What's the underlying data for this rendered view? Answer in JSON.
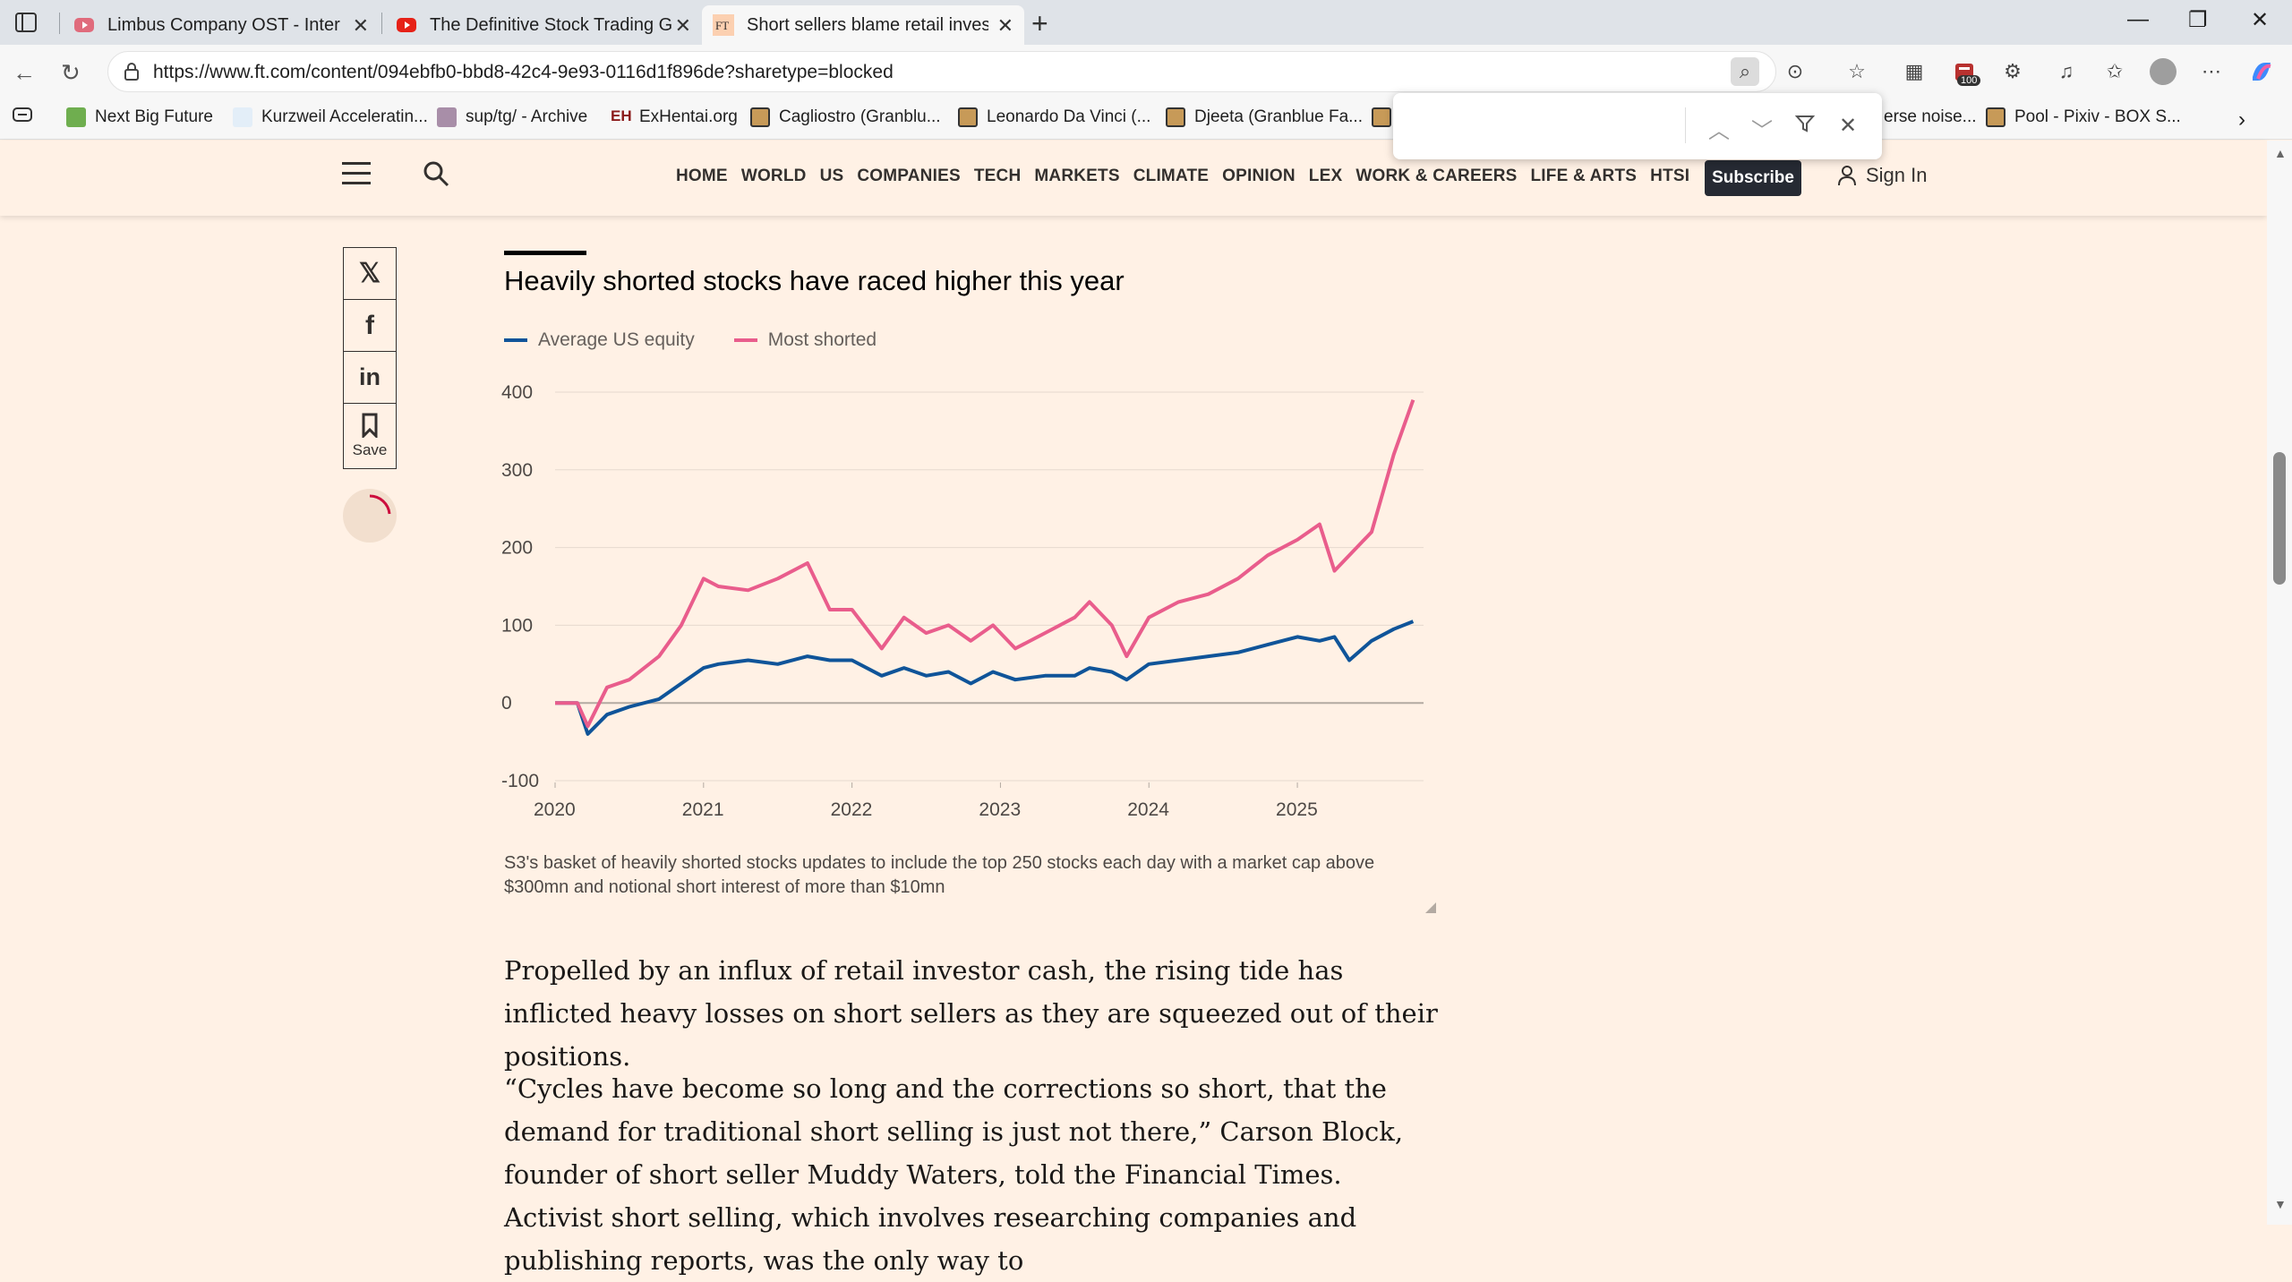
{
  "browser": {
    "tabs": [
      {
        "title": "Limbus Company OST - Intervallo",
        "icon": "youtube-icon"
      },
      {
        "title": "The Definitive Stock Trading Guide",
        "icon": "youtube-icon"
      },
      {
        "title": "Short sellers blame retail investors",
        "icon": "ft-icon"
      }
    ],
    "url": "https://www.ft.com/content/094ebfb0-bbd8-42c4-9e93-0116d1f896de?sharetype=blocked",
    "badge_count": "100",
    "bookmarks": [
      "Next Big Future",
      "Kurzweil Acceleratin...",
      "sup/tg/ - Archive",
      "ExHentai.org",
      "Cagliostro (Granblu...",
      "Leonardo Da Vinci (...",
      "Djeeta (Granblue Fa...",
      "erse noise...",
      "Pool - Pixiv - BOX S..."
    ],
    "find_placeholder": ""
  },
  "ft": {
    "nav": [
      "HOME",
      "WORLD",
      "US",
      "COMPANIES",
      "TECH",
      "MARKETS",
      "CLIMATE",
      "OPINION",
      "LEX",
      "WORK & CAREERS",
      "LIFE & ARTS",
      "HTSI"
    ],
    "subscribe": "Subscribe",
    "sign_in": "Sign In",
    "share_save": "Save"
  },
  "chart_data": {
    "type": "line",
    "title": "Heavily shorted stocks have raced higher this year",
    "xlabel": "",
    "ylabel": "",
    "ylim": [
      -100,
      400
    ],
    "yticks": [
      400,
      300,
      200,
      100,
      0,
      -100
    ],
    "xticks": [
      "2020",
      "2021",
      "2022",
      "2023",
      "2024",
      "2025"
    ],
    "legend_position": "top-left",
    "colors": {
      "Average US equity": "#0f5499",
      "Most shorted": "#e95d8c"
    },
    "x": [
      2020.0,
      2020.15,
      2020.22,
      2020.35,
      2020.5,
      2020.7,
      2020.85,
      2021.0,
      2021.1,
      2021.3,
      2021.5,
      2021.7,
      2021.85,
      2022.0,
      2022.2,
      2022.35,
      2022.5,
      2022.65,
      2022.8,
      2022.95,
      2023.1,
      2023.3,
      2023.5,
      2023.6,
      2023.75,
      2023.85,
      2024.0,
      2024.2,
      2024.4,
      2024.6,
      2024.8,
      2025.0,
      2025.15,
      2025.25,
      2025.35,
      2025.5,
      2025.65,
      2025.78
    ],
    "series": [
      {
        "name": "Average US equity",
        "values": [
          0,
          0,
          -40,
          -15,
          -5,
          5,
          25,
          45,
          50,
          55,
          50,
          60,
          55,
          55,
          35,
          45,
          35,
          40,
          25,
          40,
          30,
          35,
          35,
          45,
          40,
          30,
          50,
          55,
          60,
          65,
          75,
          85,
          80,
          85,
          55,
          80,
          95,
          105
        ]
      },
      {
        "name": "Most shorted",
        "values": [
          0,
          0,
          -30,
          20,
          30,
          60,
          100,
          160,
          150,
          145,
          160,
          180,
          120,
          120,
          70,
          110,
          90,
          100,
          80,
          100,
          70,
          90,
          110,
          130,
          100,
          60,
          110,
          130,
          140,
          160,
          190,
          210,
          230,
          170,
          190,
          220,
          320,
          390
        ]
      }
    ],
    "note": "S3's basket of heavily shorted stocks updates to include the top 250 stocks each day with a market cap above $300mn and notional short interest of more than $10mn"
  },
  "article": {
    "p1": "Propelled by an influx of retail investor cash, the rising tide has inflicted heavy losses on short sellers as they are squeezed out of their positions.",
    "p2": "“Cycles have become so long and the corrections so short, that the demand for traditional short selling is just not there,” Carson Block, founder of short seller Muddy Waters, told the Financial Times. Activist short selling, which involves researching companies and publishing reports, was the only way to"
  }
}
